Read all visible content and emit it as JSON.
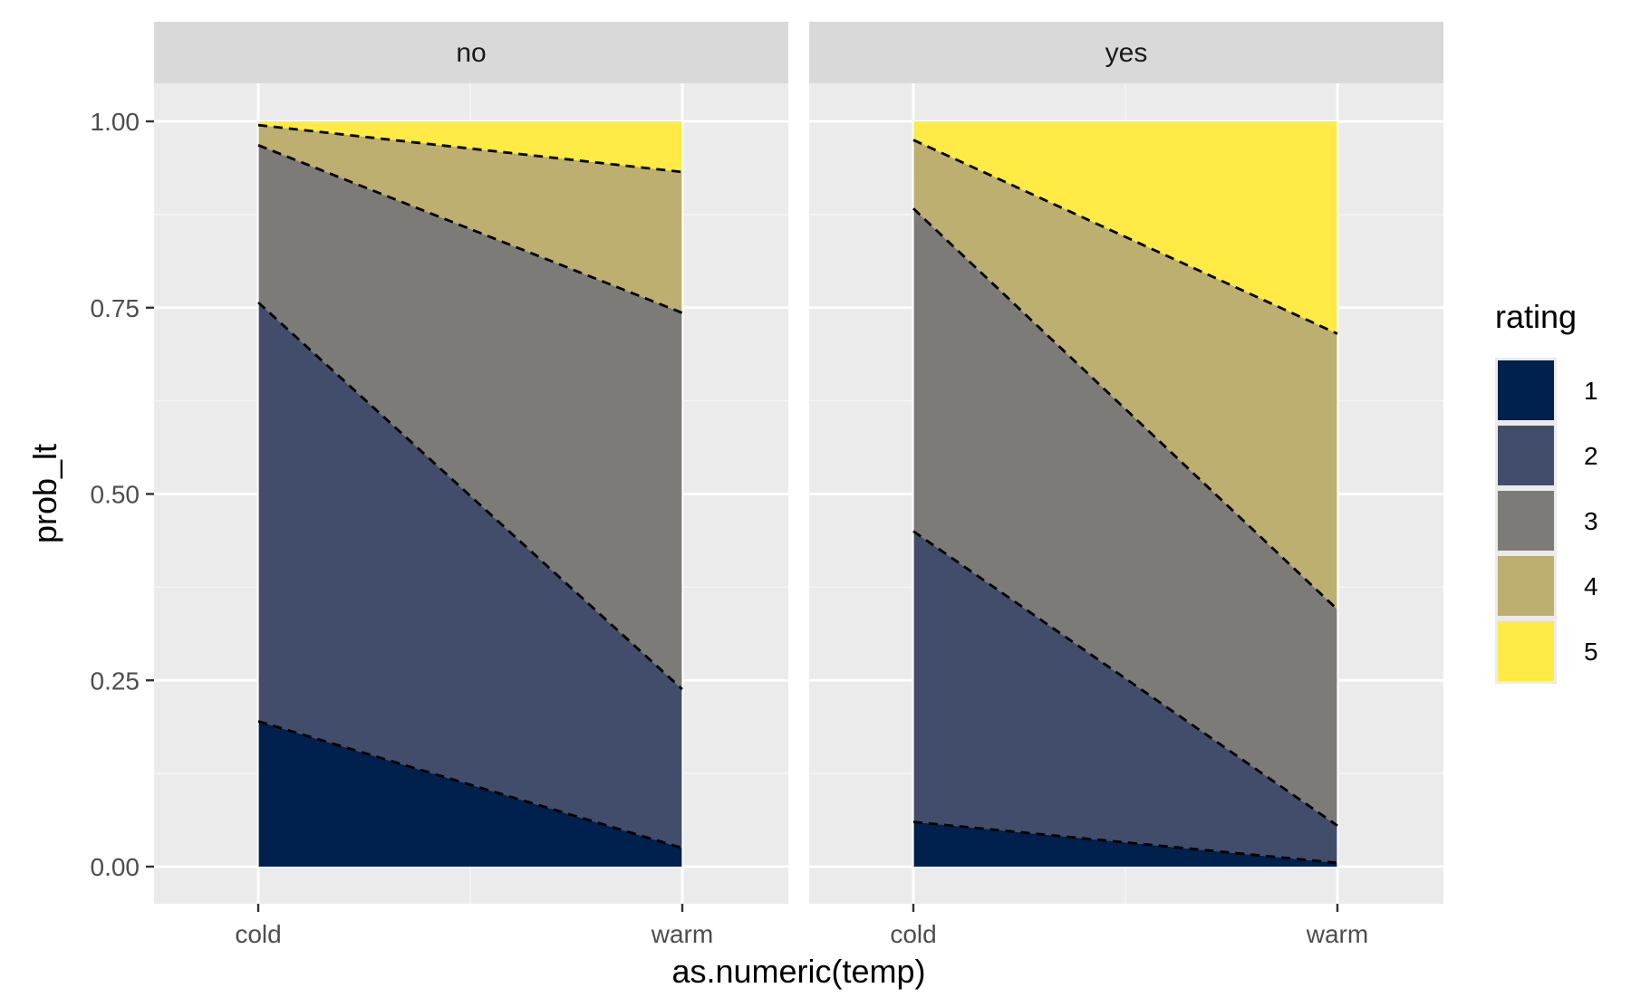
{
  "chart_data": {
    "type": "area",
    "subtype": "stacked-cumulative-probability",
    "facet_variable_values": [
      "no",
      "yes"
    ],
    "x_categories": [
      "cold",
      "warm"
    ],
    "xlabel": "as.numeric(temp)",
    "ylabel": "prob_lt",
    "ylim": [
      0,
      1
    ],
    "y_ticks": [
      "0.00",
      "0.25",
      "0.50",
      "0.75",
      "1.00"
    ],
    "grid": true,
    "legend": {
      "title": "rating",
      "position": "right",
      "entries": [
        "1",
        "2",
        "3",
        "4",
        "5"
      ]
    },
    "colors": {
      "1": "#00204D",
      "2": "#414D6B",
      "3": "#7C7B78",
      "4": "#BCAF6F",
      "5": "#FFEA46"
    },
    "boundary_line_style": "dashed",
    "panels": [
      {
        "label": "no",
        "cumulative": {
          "cold": [
            0.195,
            0.757,
            0.968,
            0.995,
            1.0
          ],
          "warm": [
            0.025,
            0.238,
            0.743,
            0.932,
            1.0
          ]
        }
      },
      {
        "label": "yes",
        "cumulative": {
          "cold": [
            0.06,
            0.45,
            0.883,
            0.975,
            1.0
          ],
          "warm": [
            0.005,
            0.055,
            0.345,
            0.715,
            1.0
          ]
        }
      }
    ]
  }
}
